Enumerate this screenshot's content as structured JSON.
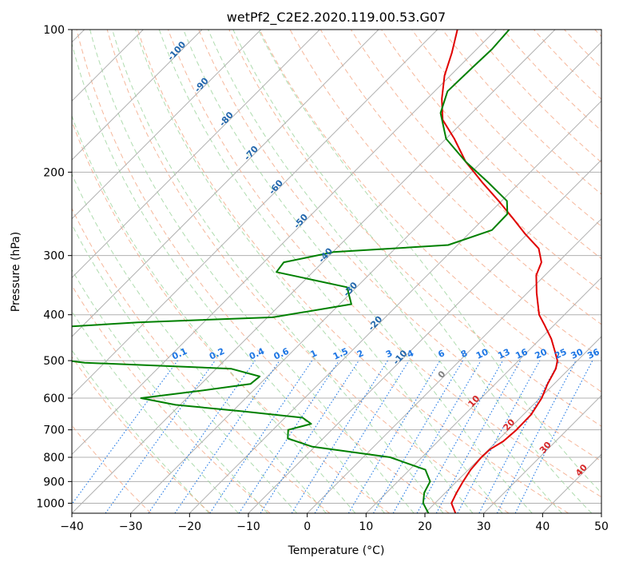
{
  "chart_data": {
    "type": "line",
    "title": "wetPf2_C2E2.2020.119.00.53.G07",
    "xlabel": "Temperature (°C)",
    "ylabel": "Pressure (hPa)",
    "xlim": [
      -40,
      50
    ],
    "ylim": [
      1050,
      100
    ],
    "y_scale": "log",
    "x_ticks": [
      -40,
      -30,
      -20,
      -10,
      0,
      10,
      20,
      30,
      40,
      50
    ],
    "x_tick_labels": [
      "−40",
      "−30",
      "−20",
      "−10",
      "0",
      "10",
      "20",
      "30",
      "40",
      "50"
    ],
    "y_ticks": [
      1000,
      900,
      800,
      700,
      600,
      500,
      400,
      300,
      200,
      100
    ],
    "y_tick_labels": [
      "1000",
      "900",
      "800",
      "700",
      "600",
      "500",
      "400",
      "300",
      "200",
      "100"
    ],
    "grid": true,
    "skew": 45,
    "colors": {
      "temperature": "#e00000",
      "dewpoint": "#008000",
      "isotherm": "#b0b0b0",
      "dry_adiabat": "#f4a582",
      "moist_adiabat": "#a6d8a6",
      "mixing_ratio": "#1f77e4",
      "adiabat_label": "#2166ac",
      "moist_label": "#d62728"
    },
    "series": [
      {
        "key": "temperature",
        "points": [
          [
            1050,
            25.2
          ],
          [
            1000,
            22.8
          ],
          [
            950,
            21.9
          ],
          [
            900,
            21.1
          ],
          [
            850,
            20.4
          ],
          [
            800,
            20.1
          ],
          [
            770,
            20.2
          ],
          [
            740,
            21.1
          ],
          [
            700,
            21.4
          ],
          [
            650,
            21.3
          ],
          [
            600,
            20.3
          ],
          [
            560,
            18.9
          ],
          [
            520,
            17.7
          ],
          [
            500,
            16.6
          ],
          [
            480,
            14.8
          ],
          [
            450,
            11.9
          ],
          [
            420,
            8.3
          ],
          [
            400,
            5.7
          ],
          [
            360,
            1.6
          ],
          [
            330,
            -1.5
          ],
          [
            310,
            -2.8
          ],
          [
            290,
            -5.6
          ],
          [
            270,
            -10.4
          ],
          [
            250,
            -15.2
          ],
          [
            230,
            -20.5
          ],
          [
            210,
            -26.5
          ],
          [
            190,
            -32.8
          ],
          [
            170,
            -38.6
          ],
          [
            155,
            -43.8
          ],
          [
            140,
            -47.5
          ],
          [
            125,
            -51.0
          ],
          [
            112,
            -53.6
          ],
          [
            100,
            -56.6
          ]
        ]
      },
      {
        "key": "dewpoint",
        "points": [
          [
            1050,
            20.6
          ],
          [
            1000,
            18.0
          ],
          [
            950,
            16.4
          ],
          [
            900,
            15.5
          ],
          [
            850,
            12.7
          ],
          [
            800,
            4.6
          ],
          [
            760,
            -10.4
          ],
          [
            730,
            -16.0
          ],
          [
            700,
            -17.4
          ],
          [
            680,
            -14.5
          ],
          [
            660,
            -17.0
          ],
          [
            640,
            -28.1
          ],
          [
            620,
            -40.8
          ],
          [
            600,
            -47.8
          ],
          [
            580,
            -39.4
          ],
          [
            560,
            -31.6
          ],
          [
            540,
            -31.3
          ],
          [
            520,
            -37.5
          ],
          [
            505,
            -63.4
          ],
          [
            480,
            -80.0
          ],
          [
            430,
            -80.0
          ],
          [
            415,
            -61.2
          ],
          [
            405,
            -39.1
          ],
          [
            380,
            -28.0
          ],
          [
            350,
            -31.6
          ],
          [
            325,
            -46.2
          ],
          [
            310,
            -46.6
          ],
          [
            295,
            -39.9
          ],
          [
            285,
            -21.6
          ],
          [
            265,
            -16.7
          ],
          [
            245,
            -16.8
          ],
          [
            230,
            -19.1
          ],
          [
            210,
            -25.5
          ],
          [
            190,
            -32.8
          ],
          [
            170,
            -40.0
          ],
          [
            150,
            -45.3
          ],
          [
            135,
            -47.8
          ],
          [
            120,
            -47.6
          ],
          [
            110,
            -47.4
          ],
          [
            100,
            -47.8
          ]
        ]
      }
    ],
    "dry_adiabat_labels": [
      "-100",
      "-90",
      "-80",
      "-70",
      "-60",
      "-50",
      "-40",
      "-30",
      "-20",
      "-10"
    ],
    "moist_adiabat_labels": [
      "0",
      "10",
      "20",
      "30",
      "40"
    ],
    "mixing_ratio_labels": [
      "0.1",
      "0.2",
      "0.4",
      "0.6",
      "1",
      "1.5",
      "2",
      "3",
      "4",
      "6",
      "8",
      "10",
      "13",
      "16",
      "20",
      "25",
      "30",
      "36"
    ]
  }
}
